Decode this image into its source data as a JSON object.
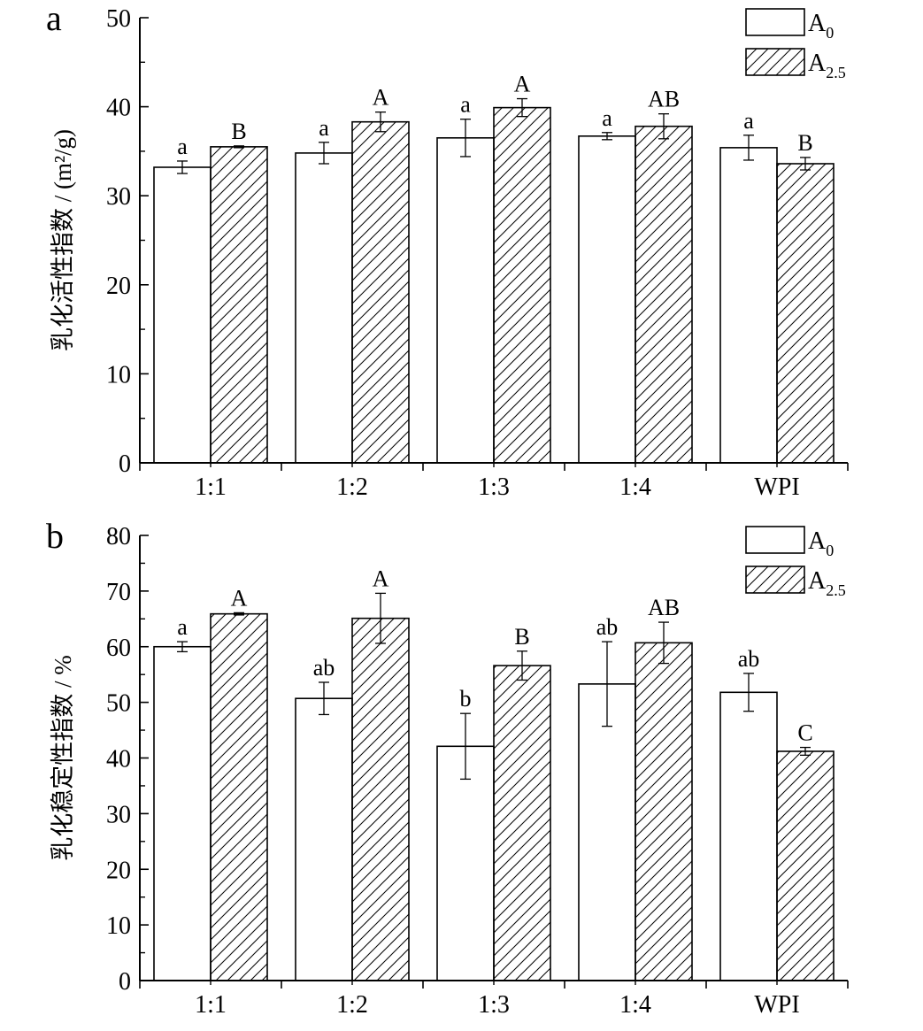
{
  "chart_data": [
    {
      "type": "bar",
      "panel_label": "a",
      "ylabel": "乳化活性指数 / (m²/g)",
      "ylim": [
        0,
        50
      ],
      "yticks": [
        0,
        10,
        20,
        30,
        40,
        50
      ],
      "categories": [
        "1:1",
        "1:2",
        "1:3",
        "1:4",
        "WPI"
      ],
      "series": [
        {
          "name": "A0",
          "legend_main": "A",
          "legend_sub": "0",
          "fill": "plain",
          "values": [
            33.2,
            34.8,
            36.5,
            36.7,
            35.4
          ],
          "errors": [
            0.7,
            1.2,
            2.1,
            0.4,
            1.4
          ],
          "letters": [
            "a",
            "a",
            "a",
            "a",
            "a"
          ]
        },
        {
          "name": "A2.5",
          "legend_main": "A",
          "legend_sub": "2.5",
          "fill": "hatched",
          "values": [
            35.5,
            38.3,
            39.9,
            37.8,
            33.6
          ],
          "errors": [
            0.1,
            1.1,
            1.0,
            1.4,
            0.7
          ],
          "letters": [
            "B",
            "A",
            "A",
            "AB",
            "B"
          ]
        }
      ],
      "legend_position": "top-right",
      "grid": false
    },
    {
      "type": "bar",
      "panel_label": "b",
      "ylabel": "乳化稳定性指数 / %",
      "ylim": [
        0,
        80
      ],
      "yticks": [
        0,
        10,
        20,
        30,
        40,
        50,
        60,
        70,
        80
      ],
      "categories": [
        "1:1",
        "1:2",
        "1:3",
        "1:4",
        "WPI"
      ],
      "series": [
        {
          "name": "A0",
          "legend_main": "A",
          "legend_sub": "0",
          "fill": "plain",
          "values": [
            60.0,
            50.7,
            42.1,
            53.3,
            51.8
          ],
          "errors": [
            0.9,
            2.9,
            5.9,
            7.6,
            3.4
          ],
          "letters": [
            "a",
            "ab",
            "b",
            "ab",
            "ab"
          ]
        },
        {
          "name": "A2.5",
          "legend_main": "A",
          "legend_sub": "2.5",
          "fill": "hatched",
          "values": [
            65.9,
            65.1,
            56.6,
            60.7,
            41.2
          ],
          "errors": [
            0.2,
            4.5,
            2.6,
            3.7,
            0.7
          ],
          "letters": [
            "A",
            "A",
            "B",
            "AB",
            "C"
          ]
        }
      ],
      "legend_position": "top-right",
      "grid": false
    }
  ]
}
